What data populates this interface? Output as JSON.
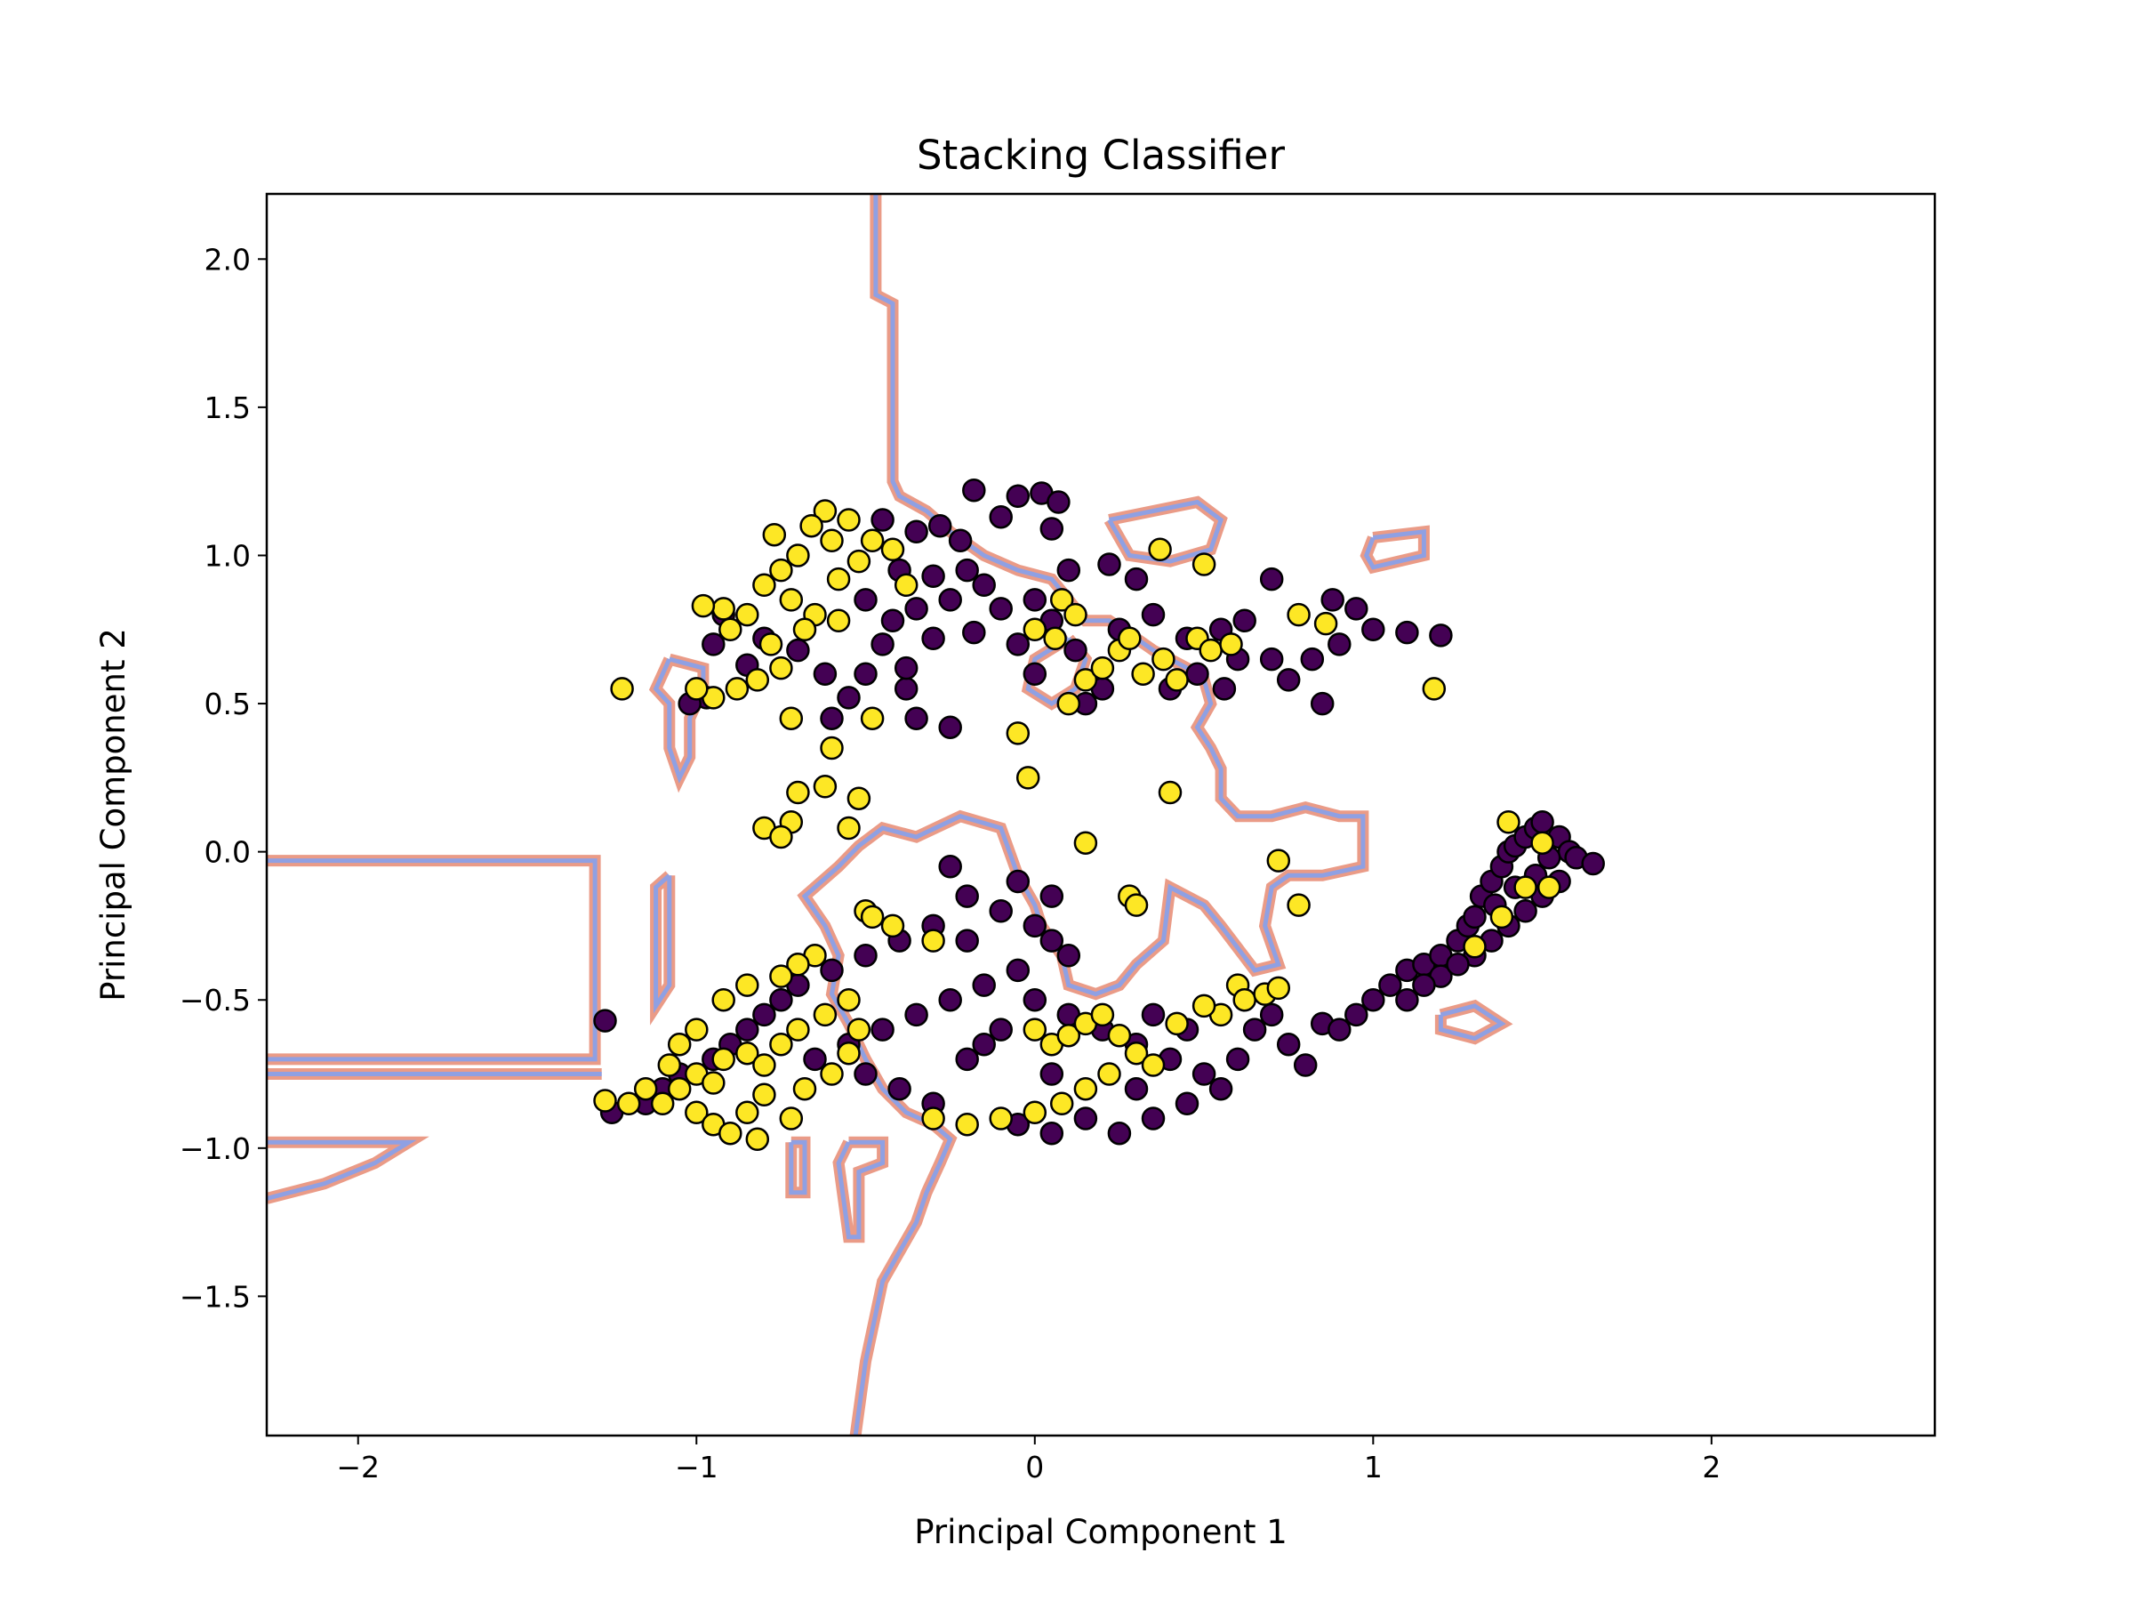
{
  "chart_data": {
    "type": "scatter",
    "title": "Stacking Classifier",
    "xlabel": "Principal Component 1",
    "ylabel": "Principal Component 2",
    "xlim": [
      -2.27,
      2.66
    ],
    "ylim": [
      -1.97,
      2.22
    ],
    "xticks": [
      -2,
      -1,
      0,
      1,
      2
    ],
    "yticks": [
      -1.5,
      -1.0,
      -0.5,
      0.0,
      0.5,
      1.0,
      1.5,
      2.0
    ],
    "xtick_labels": [
      "−2",
      "−1",
      "0",
      "1",
      "2"
    ],
    "ytick_labels": [
      "−1.5",
      "−1.0",
      "−0.5",
      "0.0",
      "0.5",
      "1.0",
      "1.5",
      "2.0"
    ],
    "grid": false,
    "legend": "none",
    "colors": {
      "class_0": "#440154",
      "class_1": "#fde725",
      "marker_edge": "#000000",
      "boundary_outer": "#e8907a",
      "boundary_inner": "#8aa0e8"
    },
    "series": [
      {
        "class": 0,
        "color": "#440154",
        "points": [
          [
            -0.18,
            1.22
          ],
          [
            -0.05,
            1.2
          ],
          [
            0.02,
            1.21
          ],
          [
            -0.1,
            1.13
          ],
          [
            0.07,
            1.18
          ],
          [
            0.05,
            1.09
          ],
          [
            -0.28,
            1.1
          ],
          [
            -0.35,
            1.08
          ],
          [
            -0.22,
            1.05
          ],
          [
            -0.4,
            0.95
          ],
          [
            -0.3,
            0.93
          ],
          [
            -0.2,
            0.95
          ],
          [
            -0.15,
            0.9
          ],
          [
            -0.25,
            0.85
          ],
          [
            -0.35,
            0.82
          ],
          [
            -0.42,
            0.78
          ],
          [
            -0.3,
            0.72
          ],
          [
            -0.18,
            0.74
          ],
          [
            -0.1,
            0.82
          ],
          [
            0.0,
            0.85
          ],
          [
            0.1,
            0.95
          ],
          [
            0.22,
            0.97
          ],
          [
            0.3,
            0.92
          ],
          [
            0.05,
            0.78
          ],
          [
            -0.05,
            0.7
          ],
          [
            -0.45,
            0.7
          ],
          [
            -0.5,
            0.6
          ],
          [
            -0.38,
            0.55
          ],
          [
            -0.55,
            0.52
          ],
          [
            -0.62,
            0.6
          ],
          [
            -0.7,
            0.68
          ],
          [
            -0.8,
            0.72
          ],
          [
            -0.85,
            0.63
          ],
          [
            -0.92,
            0.8
          ],
          [
            -0.95,
            0.7
          ],
          [
            -0.97,
            0.52
          ],
          [
            -1.02,
            0.5
          ],
          [
            -0.6,
            0.45
          ],
          [
            -0.35,
            0.45
          ],
          [
            -0.25,
            0.42
          ],
          [
            0.15,
            0.5
          ],
          [
            0.4,
            0.55
          ],
          [
            0.45,
            0.72
          ],
          [
            0.55,
            0.75
          ],
          [
            0.62,
            0.78
          ],
          [
            0.6,
            0.65
          ],
          [
            0.7,
            0.65
          ],
          [
            0.75,
            0.58
          ],
          [
            0.85,
            0.5
          ],
          [
            0.82,
            0.65
          ],
          [
            0.9,
            0.7
          ],
          [
            0.88,
            0.85
          ],
          [
            0.95,
            0.82
          ],
          [
            1.0,
            0.75
          ],
          [
            1.1,
            0.74
          ],
          [
            1.2,
            0.73
          ],
          [
            0.7,
            0.92
          ],
          [
            0.35,
            0.8
          ],
          [
            0.25,
            0.75
          ],
          [
            0.12,
            0.68
          ],
          [
            -0.45,
            1.12
          ],
          [
            -0.5,
            0.85
          ],
          [
            -0.38,
            0.62
          ],
          [
            0.0,
            0.6
          ],
          [
            0.2,
            0.55
          ],
          [
            0.48,
            0.6
          ],
          [
            0.56,
            0.55
          ],
          [
            -0.3,
            -0.25
          ],
          [
            -0.4,
            -0.3
          ],
          [
            -0.5,
            -0.35
          ],
          [
            -0.6,
            -0.4
          ],
          [
            -0.7,
            -0.45
          ],
          [
            -0.75,
            -0.5
          ],
          [
            -0.8,
            -0.55
          ],
          [
            -0.85,
            -0.6
          ],
          [
            -0.9,
            -0.65
          ],
          [
            -0.95,
            -0.7
          ],
          [
            -1.05,
            -0.75
          ],
          [
            -1.1,
            -0.8
          ],
          [
            -1.15,
            -0.85
          ],
          [
            -1.25,
            -0.88
          ],
          [
            -0.2,
            -0.3
          ],
          [
            -0.1,
            -0.2
          ],
          [
            0.0,
            -0.25
          ],
          [
            0.05,
            -0.3
          ],
          [
            0.1,
            -0.35
          ],
          [
            -0.05,
            -0.4
          ],
          [
            -0.15,
            -0.45
          ],
          [
            -0.25,
            -0.5
          ],
          [
            -0.35,
            -0.55
          ],
          [
            -0.45,
            -0.6
          ],
          [
            -0.55,
            -0.65
          ],
          [
            -0.65,
            -0.7
          ],
          [
            -0.5,
            -0.75
          ],
          [
            -0.4,
            -0.8
          ],
          [
            -0.3,
            -0.85
          ],
          [
            -0.2,
            -0.7
          ],
          [
            -0.1,
            -0.6
          ],
          [
            0.0,
            -0.5
          ],
          [
            0.1,
            -0.55
          ],
          [
            0.2,
            -0.6
          ],
          [
            0.3,
            -0.65
          ],
          [
            0.4,
            -0.7
          ],
          [
            0.5,
            -0.75
          ],
          [
            0.55,
            -0.8
          ],
          [
            0.45,
            -0.85
          ],
          [
            0.35,
            -0.9
          ],
          [
            0.25,
            -0.95
          ],
          [
            0.15,
            -0.9
          ],
          [
            0.05,
            -0.95
          ],
          [
            -0.05,
            -0.92
          ],
          [
            -0.2,
            -0.15
          ],
          [
            -0.25,
            -0.05
          ],
          [
            -0.05,
            -0.1
          ],
          [
            0.05,
            -0.15
          ],
          [
            0.6,
            -0.7
          ],
          [
            0.65,
            -0.6
          ],
          [
            0.7,
            -0.55
          ],
          [
            0.75,
            -0.65
          ],
          [
            0.8,
            -0.72
          ],
          [
            0.85,
            -0.58
          ],
          [
            0.9,
            -0.6
          ],
          [
            0.95,
            -0.55
          ],
          [
            1.0,
            -0.5
          ],
          [
            1.05,
            -0.45
          ],
          [
            1.1,
            -0.4
          ],
          [
            1.15,
            -0.38
          ],
          [
            1.2,
            -0.35
          ],
          [
            1.25,
            -0.3
          ],
          [
            1.28,
            -0.25
          ],
          [
            1.3,
            -0.22
          ],
          [
            1.32,
            -0.15
          ],
          [
            1.35,
            -0.1
          ],
          [
            1.38,
            -0.05
          ],
          [
            1.4,
            0.0
          ],
          [
            1.42,
            0.02
          ],
          [
            1.45,
            0.05
          ],
          [
            1.48,
            0.08
          ],
          [
            1.5,
            0.1
          ],
          [
            1.55,
            0.05
          ],
          [
            1.58,
            0.0
          ],
          [
            1.6,
            -0.02
          ],
          [
            1.65,
            -0.04
          ],
          [
            1.3,
            -0.35
          ],
          [
            1.35,
            -0.3
          ],
          [
            1.4,
            -0.25
          ],
          [
            1.45,
            -0.2
          ],
          [
            1.5,
            -0.15
          ],
          [
            1.55,
            -0.1
          ],
          [
            1.2,
            -0.42
          ],
          [
            1.25,
            -0.38
          ],
          [
            1.1,
            -0.5
          ],
          [
            1.15,
            -0.45
          ],
          [
            1.42,
            -0.12
          ],
          [
            1.48,
            -0.08
          ],
          [
            1.52,
            -0.02
          ],
          [
            1.36,
            -0.18
          ],
          [
            -1.27,
            -0.57
          ],
          [
            0.3,
            -0.8
          ],
          [
            0.45,
            -0.6
          ],
          [
            0.35,
            -0.55
          ],
          [
            -0.15,
            -0.65
          ],
          [
            0.05,
            -0.75
          ]
        ]
      },
      {
        "class": 1,
        "color": "#fde725",
        "points": [
          [
            -0.62,
            1.15
          ],
          [
            -0.55,
            1.12
          ],
          [
            -0.6,
            1.05
          ],
          [
            -0.7,
            1.0
          ],
          [
            -0.75,
            0.95
          ],
          [
            -0.8,
            0.9
          ],
          [
            -0.72,
            0.85
          ],
          [
            -0.65,
            0.8
          ],
          [
            -0.58,
            0.78
          ],
          [
            -0.85,
            0.8
          ],
          [
            -0.92,
            0.82
          ],
          [
            -0.98,
            0.83
          ],
          [
            -0.9,
            0.75
          ],
          [
            -0.78,
            0.7
          ],
          [
            -0.68,
            0.75
          ],
          [
            -0.75,
            0.62
          ],
          [
            -0.82,
            0.58
          ],
          [
            -0.88,
            0.55
          ],
          [
            -0.95,
            0.52
          ],
          [
            -1.0,
            0.55
          ],
          [
            -1.22,
            0.55
          ],
          [
            -0.72,
            0.45
          ],
          [
            -0.6,
            0.35
          ],
          [
            -0.48,
            0.45
          ],
          [
            -0.58,
            0.92
          ],
          [
            -0.52,
            0.98
          ],
          [
            -0.48,
            1.05
          ],
          [
            -0.42,
            1.02
          ],
          [
            -0.38,
            0.9
          ],
          [
            -0.77,
            1.07
          ],
          [
            -0.66,
            1.1
          ],
          [
            -0.62,
            0.22
          ],
          [
            -0.7,
            0.2
          ],
          [
            -0.72,
            0.1
          ],
          [
            -0.8,
            0.08
          ],
          [
            -0.75,
            0.05
          ],
          [
            -0.55,
            0.08
          ],
          [
            -0.52,
            0.18
          ],
          [
            0.4,
            0.2
          ],
          [
            0.1,
            0.5
          ],
          [
            0.15,
            0.58
          ],
          [
            0.2,
            0.62
          ],
          [
            0.25,
            0.68
          ],
          [
            0.28,
            0.72
          ],
          [
            0.32,
            0.6
          ],
          [
            0.38,
            0.65
          ],
          [
            0.42,
            0.58
          ],
          [
            0.48,
            0.72
          ],
          [
            0.52,
            0.68
          ],
          [
            0.58,
            0.7
          ],
          [
            0.78,
            0.8
          ],
          [
            0.86,
            0.77
          ],
          [
            1.18,
            0.55
          ],
          [
            0.5,
            0.97
          ],
          [
            0.37,
            1.02
          ],
          [
            0.06,
            0.72
          ],
          [
            -0.02,
            0.25
          ],
          [
            -0.05,
            0.4
          ],
          [
            0.0,
            0.75
          ],
          [
            0.08,
            0.85
          ],
          [
            0.12,
            0.8
          ],
          [
            -1.1,
            -0.85
          ],
          [
            -1.05,
            -0.8
          ],
          [
            -1.0,
            -0.75
          ],
          [
            -0.95,
            -0.78
          ],
          [
            -0.92,
            -0.7
          ],
          [
            -0.85,
            -0.68
          ],
          [
            -0.8,
            -0.72
          ],
          [
            -0.75,
            -0.65
          ],
          [
            -0.7,
            -0.6
          ],
          [
            -0.62,
            -0.55
          ],
          [
            -0.55,
            -0.5
          ],
          [
            -0.65,
            -0.35
          ],
          [
            -0.7,
            -0.38
          ],
          [
            -0.75,
            -0.42
          ],
          [
            -0.85,
            -0.45
          ],
          [
            -0.92,
            -0.5
          ],
          [
            -1.0,
            -0.6
          ],
          [
            -1.05,
            -0.65
          ],
          [
            -1.08,
            -0.72
          ],
          [
            -1.15,
            -0.8
          ],
          [
            -1.2,
            -0.85
          ],
          [
            -1.27,
            -0.84
          ],
          [
            -1.0,
            -0.88
          ],
          [
            -0.95,
            -0.92
          ],
          [
            -0.9,
            -0.95
          ],
          [
            -0.82,
            -0.97
          ],
          [
            -0.5,
            -0.2
          ],
          [
            -0.48,
            -0.22
          ],
          [
            -0.42,
            -0.25
          ],
          [
            -0.3,
            -0.3
          ],
          [
            0.0,
            -0.6
          ],
          [
            0.05,
            -0.65
          ],
          [
            0.1,
            -0.62
          ],
          [
            0.15,
            -0.58
          ],
          [
            0.2,
            -0.55
          ],
          [
            0.25,
            -0.62
          ],
          [
            0.3,
            -0.68
          ],
          [
            0.35,
            -0.72
          ],
          [
            0.22,
            -0.75
          ],
          [
            0.15,
            -0.8
          ],
          [
            0.08,
            -0.85
          ],
          [
            0.0,
            -0.88
          ],
          [
            -0.1,
            -0.9
          ],
          [
            -0.2,
            -0.92
          ],
          [
            -0.3,
            -0.9
          ],
          [
            0.28,
            -0.15
          ],
          [
            0.3,
            -0.18
          ],
          [
            0.15,
            0.03
          ],
          [
            0.72,
            -0.03
          ],
          [
            0.78,
            -0.18
          ],
          [
            0.6,
            -0.45
          ],
          [
            0.62,
            -0.5
          ],
          [
            0.68,
            -0.48
          ],
          [
            0.72,
            -0.46
          ],
          [
            0.55,
            -0.55
          ],
          [
            0.5,
            -0.52
          ],
          [
            0.42,
            -0.58
          ],
          [
            1.4,
            0.1
          ],
          [
            1.5,
            0.03
          ],
          [
            1.45,
            -0.12
          ],
          [
            1.52,
            -0.12
          ],
          [
            1.38,
            -0.22
          ],
          [
            1.3,
            -0.32
          ],
          [
            -0.8,
            -0.82
          ],
          [
            -0.85,
            -0.88
          ],
          [
            -0.72,
            -0.9
          ],
          [
            -0.68,
            -0.8
          ],
          [
            -0.6,
            -0.75
          ],
          [
            -0.55,
            -0.68
          ],
          [
            -0.52,
            -0.6
          ]
        ]
      }
    ]
  }
}
